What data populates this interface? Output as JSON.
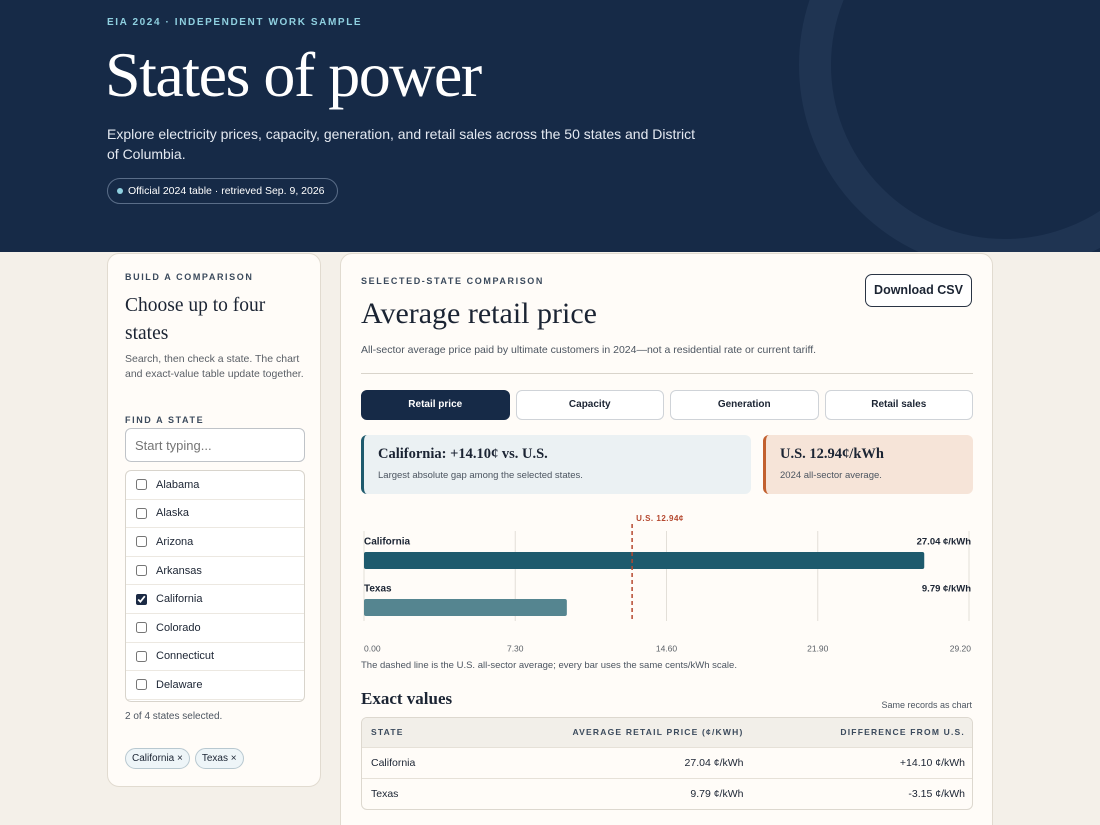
{
  "header": {
    "eyebrow": "EIA 2024 · INDEPENDENT WORK SAMPLE",
    "title": "States of power",
    "subtitle": "Explore electricity prices, capacity, generation, and retail sales across the 50 states and District of Columbia.",
    "badge": "Official 2024 table · retrieved Sep. 9, 2026"
  },
  "sidebar": {
    "eyebrow": "BUILD A COMPARISON",
    "title": "Choose up to four states",
    "description": "Search, then check a state. The chart and exact-value table update together.",
    "search_label": "FIND A STATE",
    "search_placeholder": "Start typing...",
    "states": [
      {
        "name": "Alabama",
        "checked": false
      },
      {
        "name": "Alaska",
        "checked": false
      },
      {
        "name": "Arizona",
        "checked": false
      },
      {
        "name": "Arkansas",
        "checked": false
      },
      {
        "name": "California",
        "checked": true
      },
      {
        "name": "Colorado",
        "checked": false
      },
      {
        "name": "Connecticut",
        "checked": false
      },
      {
        "name": "Delaware",
        "checked": false
      }
    ],
    "status": "2 of 4 states selected.",
    "chips": [
      "California ×",
      "Texas ×"
    ]
  },
  "main": {
    "eyebrow": "SELECTED-STATE COMPARISON",
    "title": "Average retail price",
    "description": "All-sector average price paid by ultimate customers in 2024—not a residential rate or current tariff.",
    "download": "Download CSV",
    "tabs": [
      "Retail price",
      "Capacity",
      "Generation",
      "Retail sales"
    ],
    "active_tab": 0,
    "callouts": [
      {
        "title": "California: +14.10¢ vs. U.S.",
        "text": "Largest absolute gap among the selected states."
      },
      {
        "title": "U.S. 12.94¢/kWh",
        "text": "2024 all-sector average."
      }
    ],
    "chart_note": "The dashed line is the U.S. all-sector average; every bar uses the same cents/kWh scale.",
    "table": {
      "title": "Exact values",
      "note": "Same records as chart",
      "columns": [
        "STATE",
        "AVERAGE RETAIL PRICE (¢/KWH)",
        "DIFFERENCE FROM U.S."
      ],
      "rows": [
        [
          "California",
          "27.04 ¢/kWh",
          "+14.10 ¢/kWh"
        ],
        [
          "Texas",
          "9.79 ¢/kWh",
          "-3.15 ¢/kWh"
        ]
      ]
    }
  },
  "chart_data": {
    "type": "bar",
    "orientation": "horizontal",
    "categories": [
      "California",
      "Texas"
    ],
    "values": [
      27.04,
      9.79
    ],
    "value_labels": [
      "27.04 ¢/kWh",
      "9.79 ¢/kWh"
    ],
    "colors": [
      "#1e5a6d",
      "#558590"
    ],
    "xlim": [
      0,
      29.2
    ],
    "xticks": [
      {
        "value": 0,
        "label": "0.00"
      },
      {
        "value": 7.3,
        "label": "7.30"
      },
      {
        "value": 14.6,
        "label": "14.60"
      },
      {
        "value": 21.9,
        "label": "21.90"
      },
      {
        "value": 29.2,
        "label": "29.20"
      }
    ],
    "grid": true,
    "reference": {
      "value": 12.94,
      "label": "U.S. 12.94¢",
      "color": "#b5482f"
    }
  }
}
